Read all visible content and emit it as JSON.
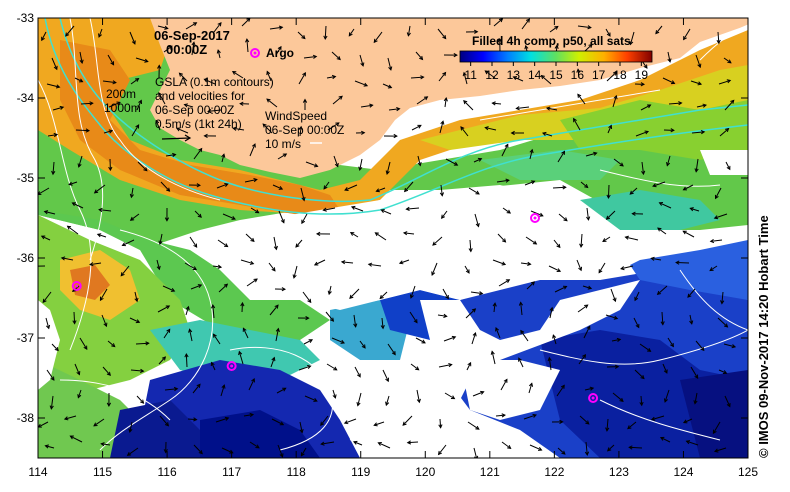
{
  "header": {
    "date": "06-Sep-2017",
    "time": "00:00Z"
  },
  "argo_legend": "Argo",
  "depth_labels": [
    "200m",
    "1000m"
  ],
  "gsla_text": [
    "GSLA (0.1m contours)",
    "and velocities for",
    "06-Sep 00:00Z",
    "0.5m/s (1kt 24h)"
  ],
  "wind_text": [
    "WindSpeed",
    "06-Sep 00:00Z",
    "10 m/s"
  ],
  "colorbar": {
    "title": "Filled 4h comp, p50, all sats",
    "ticks": [
      "11",
      "12",
      "13",
      "14",
      "15",
      "16",
      "17",
      "18",
      "19"
    ],
    "range": [
      10.5,
      19.5
    ]
  },
  "axes": {
    "x_ticks": [
      "114",
      "115",
      "116",
      "117",
      "118",
      "119",
      "120",
      "121",
      "122",
      "123",
      "124",
      "125"
    ],
    "y_ticks": [
      "-33",
      "-34",
      "-35",
      "-36",
      "-37",
      "-38"
    ],
    "lon_range": [
      114,
      125
    ],
    "lat_range": [
      -38.5,
      -33
    ]
  },
  "credit": "© IMOS 09-Nov-2017 14:20 Hobart Time",
  "colors": {
    "land": "#fcc89a",
    "no_data": "#ffffff",
    "argo": "#ff00ff",
    "contour": "#ffffff",
    "isobath": "#40e0d0"
  },
  "argo_floats": [
    {
      "lon": 114.6,
      "lat": -36.35
    },
    {
      "lon": 117.0,
      "lat": -37.35
    },
    {
      "lon": 121.7,
      "lat": -35.5
    },
    {
      "lon": 122.6,
      "lat": -37.75
    }
  ]
}
